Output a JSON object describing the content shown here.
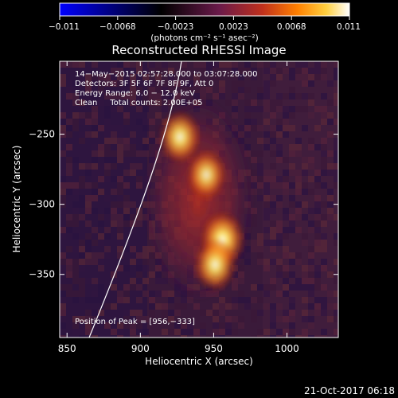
{
  "colorbar": {
    "tick_labels": [
      "−0.011",
      "−0.0068",
      "−0.0023",
      "0.0023",
      "0.0068",
      "0.011"
    ],
    "unit_label": "(photons cm⁻² s⁻¹ asec⁻²)",
    "colors": [
      "#0000ff",
      "#000000",
      "#6a1a4a",
      "#c0301c",
      "#ff8000",
      "#ffd040",
      "#ffffff"
    ]
  },
  "title": "Reconstructed RHESSI Image",
  "info": {
    "time_range": "14−May−2015 02:57:28.000 to 03:07:28.000",
    "detectors": "Detectors: 3F 5F 6F 7F 8F 9F, Att 0",
    "energy_range": "Energy Range: 6.0 − 12.0 keV",
    "clean_counts": "Clean     Total counts: 2.00E+05",
    "peak_position": "Position of Peak = [956,−333]"
  },
  "axes": {
    "xlabel": "Heliocentric X (arcsec)",
    "ylabel": "Heliocentric Y (arcsec)",
    "xlim": [
      845,
      1035
    ],
    "ylim": [
      -395,
      -198
    ],
    "x_ticks": [
      850,
      900,
      950,
      1000
    ],
    "y_ticks": [
      -250,
      -300,
      -350
    ],
    "x_tick_labels": [
      "850",
      "900",
      "950",
      "1000"
    ],
    "y_tick_labels": [
      "−250",
      "−300",
      "−350"
    ]
  },
  "sources": [
    {
      "x": 927,
      "y": -252,
      "intensity": 0.85
    },
    {
      "x": 945,
      "y": -279,
      "intensity": 0.7
    },
    {
      "x": 956,
      "y": -325,
      "intensity": 1.0
    },
    {
      "x": 951,
      "y": -343,
      "intensity": 0.85
    }
  ],
  "footer": {
    "timestamp": "21-Oct-2017 06:18"
  }
}
